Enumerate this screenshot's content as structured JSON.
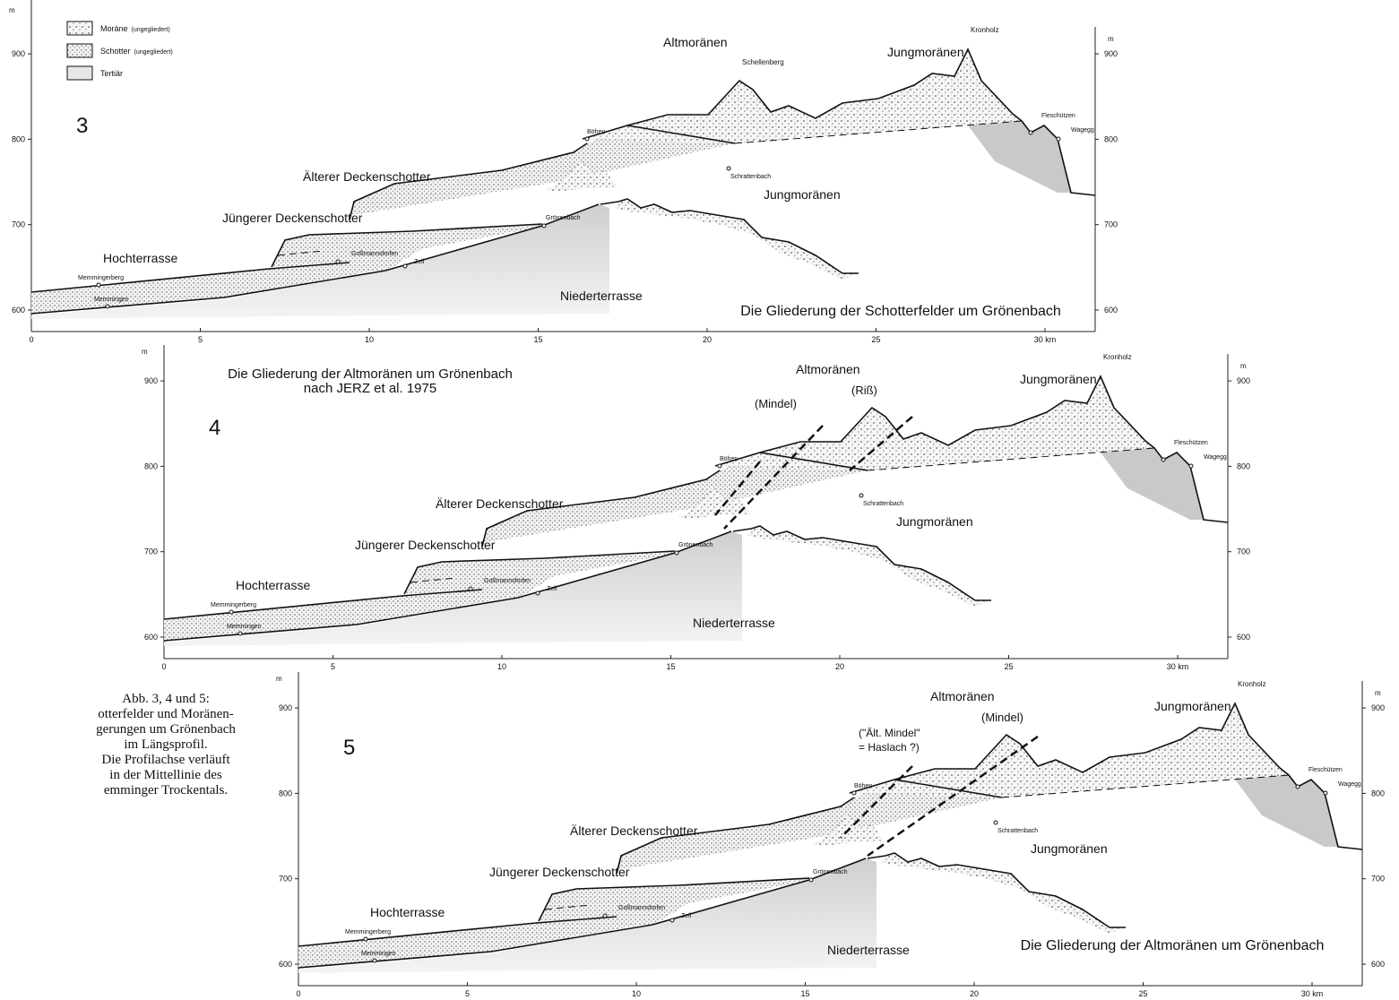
{
  "axis": {
    "unit": "m",
    "yticks": [
      600,
      700,
      800,
      900
    ],
    "xticks": [
      0,
      5,
      10,
      15,
      20,
      25,
      {
        "value": 30,
        "label": "30 km"
      }
    ]
  },
  "legend": [
    {
      "label": "Moräne",
      "note": "(ungegliedert)"
    },
    {
      "label": "Schotter",
      "note": "(ungegliedert)"
    },
    {
      "label": "Tertiär"
    }
  ],
  "caption": [
    "Abb. 3, 4 und 5:",
    "otterfelder und Moränen-",
    "gerungen um Grönenbach",
    "im Längsprofil.",
    "Die Profilachse verläuft",
    "in der Mittellinie des",
    "emminger Trockentals."
  ],
  "panels": [
    {
      "number": "3",
      "title": [
        "Die Gliederung der Schotterfelder um Grönenbach"
      ],
      "labels": [
        "Altmoränen",
        "Jungmoränen",
        "Kronholz",
        "Älterer Deckenschotter",
        "Jüngerer Deckenschotter",
        "Hochterrasse",
        "Niederterrasse",
        "Jungmoränen",
        "Böhen",
        "Grönenbach",
        "Goßmannshofen",
        "Zell",
        "Memmingerberg",
        "Memmingen",
        "Schrattenbach",
        "Fleschützen",
        "Wagegg"
      ],
      "notes": [
        "Schellenberg"
      ]
    },
    {
      "number": "4",
      "title": [
        "Die Gliederung der Altmoränen um Grönenbach",
        "nach JERZ et al. 1975"
      ],
      "labels": [
        "Altmoränen",
        "Jungmoränen",
        "Kronholz",
        "Älterer Deckenschotter",
        "Jüngerer Deckenschotter",
        "Hochterrasse",
        "Niederterrasse",
        "Jungmoränen",
        "Böhen",
        "Grönenbach",
        "Goßmannshofen",
        "Zell",
        "Memmingerberg",
        "Memmingen",
        "Schrattenbach",
        "Fleschützen",
        "Wagegg"
      ],
      "notes": [
        "(Mindel)",
        "(Riß)"
      ]
    },
    {
      "number": "5",
      "title": [
        "Die Gliederung der Altmoränen um Grönenbach"
      ],
      "labels": [
        "Altmoränen",
        "Jungmoränen",
        "Kronholz",
        "Älterer Deckenschotter",
        "Jüngerer Deckenschotter",
        "Hochterrasse",
        "Niederterrasse",
        "Jungmoränen",
        "Böhen",
        "Grönenbach",
        "Goßmannshofen",
        "Zell",
        "Memmingerberg",
        "Memmingen",
        "Schrattenbach",
        "Fleschützen",
        "Wagegg"
      ],
      "notes": [
        "(Mindel)",
        "(\"Ält. Mindel\"",
        "= Haslach ?)"
      ]
    }
  ]
}
